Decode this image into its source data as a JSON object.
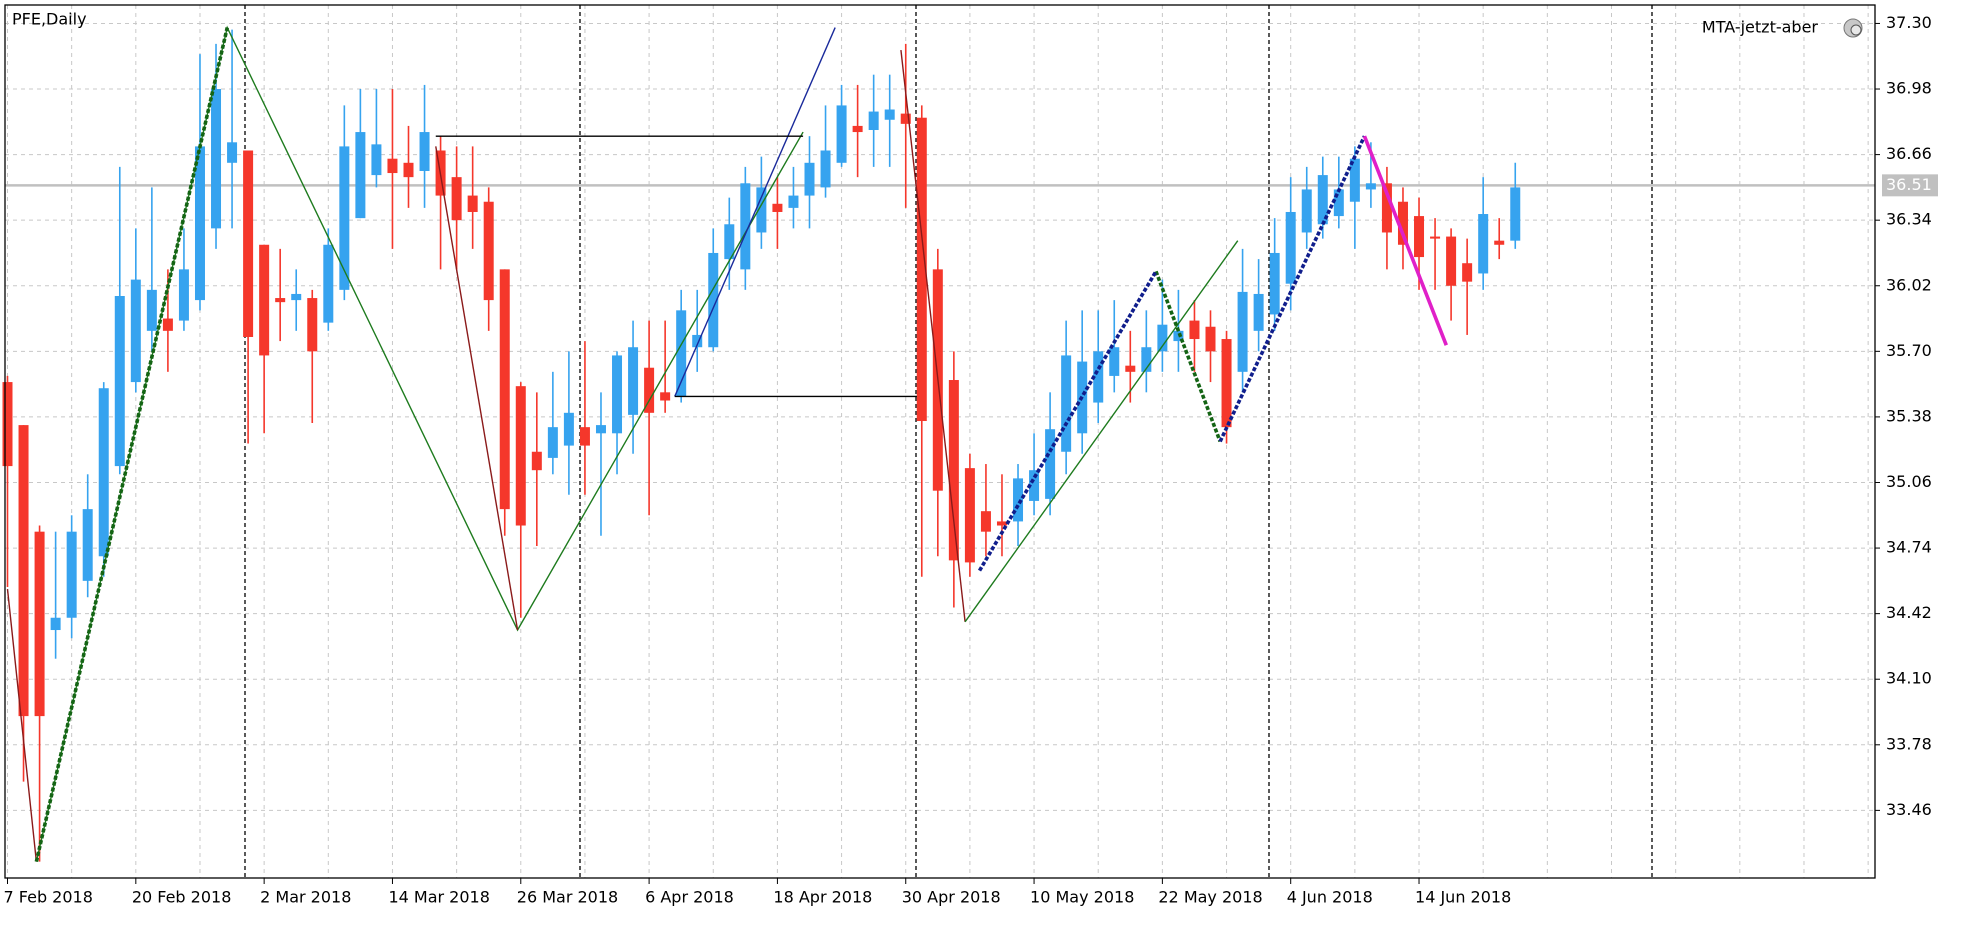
{
  "chart_data": {
    "type": "candlestick",
    "title": "PFE,Daily",
    "indicator": "MTA-jetzt-aber",
    "up_color": "#36a3ef",
    "down_color": "#f5372b",
    "categories": [
      "7 Feb 2018",
      null,
      null,
      null,
      null,
      null,
      null,
      null,
      "20 Feb 2018",
      null,
      null,
      null,
      null,
      null,
      null,
      null,
      "2 Mar 2018",
      null,
      null,
      null,
      null,
      null,
      null,
      null,
      "14 Mar 2018",
      null,
      null,
      null,
      null,
      null,
      null,
      null,
      "26 Mar 2018",
      null,
      null,
      null,
      null,
      null,
      null,
      null,
      "6 Apr 2018",
      null,
      null,
      null,
      null,
      null,
      null,
      null,
      "18 Apr 2018",
      null,
      null,
      null,
      null,
      null,
      null,
      null,
      "30 Apr 2018",
      null,
      null,
      null,
      null,
      null,
      null,
      null,
      "10 May 2018",
      null,
      null,
      null,
      null,
      null,
      null,
      null,
      "22 May 2018",
      null,
      null,
      null,
      null,
      null,
      null,
      null,
      "4 Jun 2018",
      null,
      null,
      null,
      null,
      null,
      null,
      null,
      "14 Jun 2018",
      null,
      null,
      null,
      null,
      null,
      null
    ],
    "open": [
      35.55,
      35.34,
      34.82,
      34.34,
      34.4,
      34.58,
      34.7,
      35.14,
      35.55,
      35.8,
      35.86,
      35.85,
      35.95,
      36.3,
      36.62,
      36.68,
      36.22,
      35.96,
      35.95,
      35.96,
      35.84,
      36.0,
      36.35,
      36.56,
      36.64,
      36.62,
      36.58,
      36.68,
      36.55,
      36.46,
      36.43,
      36.1,
      35.53,
      35.21,
      35.18,
      35.24,
      35.33,
      35.3,
      35.3,
      35.39,
      35.62,
      35.5,
      35.48,
      35.72,
      35.72,
      36.15,
      36.1,
      36.28,
      36.42,
      36.4,
      36.46,
      36.5,
      36.62,
      36.8,
      36.78,
      36.83,
      36.86,
      36.84,
      36.1,
      35.56,
      35.13,
      34.92,
      34.87,
      34.87,
      34.97,
      34.98,
      35.21,
      35.3,
      35.45,
      35.58,
      35.63,
      35.6,
      35.7,
      35.75,
      35.85,
      35.82,
      35.76,
      35.6,
      35.8,
      35.88,
      36.03,
      36.28,
      36.32,
      36.36,
      36.43,
      36.49,
      36.52,
      36.43,
      36.36,
      36.26,
      36.26,
      36.13,
      36.08,
      36.24,
      36.24
    ],
    "high": [
      35.58,
      35.34,
      34.85,
      34.82,
      34.9,
      35.1,
      35.55,
      36.6,
      36.3,
      36.5,
      36.1,
      36.3,
      37.15,
      37.2,
      37.27,
      36.68,
      36.22,
      36.2,
      36.1,
      36.0,
      36.3,
      36.9,
      36.98,
      36.98,
      36.98,
      36.8,
      37.0,
      36.75,
      36.7,
      36.7,
      36.5,
      36.1,
      35.55,
      35.5,
      35.6,
      35.7,
      35.75,
      35.5,
      35.7,
      35.85,
      35.85,
      35.85,
      36.0,
      36.0,
      36.3,
      36.45,
      36.6,
      36.65,
      36.55,
      36.6,
      36.75,
      36.9,
      37.0,
      37.0,
      37.05,
      37.05,
      37.2,
      36.9,
      36.2,
      35.7,
      35.2,
      35.15,
      35.1,
      35.15,
      35.3,
      35.5,
      35.85,
      35.9,
      35.9,
      35.95,
      35.8,
      35.9,
      36.05,
      36.0,
      35.95,
      35.9,
      35.8,
      36.2,
      36.15,
      36.35,
      36.55,
      36.6,
      36.65,
      36.65,
      36.7,
      36.72,
      36.6,
      36.5,
      36.45,
      36.35,
      36.3,
      36.25,
      36.55,
      36.35,
      36.62
    ],
    "low": [
      34.55,
      33.6,
      33.21,
      34.2,
      34.3,
      34.5,
      34.6,
      35.1,
      35.5,
      35.7,
      35.6,
      35.8,
      35.9,
      36.2,
      36.3,
      35.25,
      35.3,
      35.75,
      35.8,
      35.35,
      35.8,
      35.95,
      36.35,
      36.5,
      36.2,
      36.4,
      36.4,
      36.1,
      36.1,
      36.2,
      35.8,
      34.8,
      34.4,
      34.75,
      35.1,
      35.0,
      35.0,
      34.8,
      35.1,
      35.2,
      34.9,
      35.4,
      35.45,
      35.6,
      35.7,
      36.0,
      36.0,
      36.2,
      36.2,
      36.3,
      36.3,
      36.45,
      36.6,
      36.55,
      36.6,
      36.6,
      36.4,
      34.6,
      34.7,
      34.45,
      34.6,
      34.7,
      34.7,
      34.75,
      34.9,
      34.9,
      35.1,
      35.2,
      35.35,
      35.5,
      35.45,
      35.5,
      35.6,
      35.6,
      35.6,
      35.55,
      35.25,
      35.5,
      35.7,
      35.8,
      35.9,
      36.2,
      36.25,
      36.3,
      36.2,
      36.4,
      36.1,
      36.1,
      36.0,
      36.0,
      35.85,
      35.78,
      36.0,
      36.15,
      36.2
    ],
    "close": [
      35.14,
      33.92,
      33.92,
      34.4,
      34.82,
      34.93,
      35.52,
      35.97,
      36.05,
      36.0,
      35.8,
      36.1,
      36.7,
      36.98,
      36.72,
      35.77,
      35.68,
      35.94,
      35.98,
      35.7,
      36.22,
      36.7,
      36.77,
      36.71,
      36.57,
      36.55,
      36.77,
      36.46,
      36.34,
      36.38,
      35.95,
      34.93,
      34.85,
      35.12,
      35.33,
      35.4,
      35.24,
      35.34,
      35.68,
      35.72,
      35.4,
      35.46,
      35.9,
      35.78,
      36.18,
      36.32,
      36.52,
      36.5,
      36.38,
      36.46,
      36.62,
      36.68,
      36.9,
      36.77,
      36.87,
      36.88,
      36.81,
      35.36,
      35.02,
      34.68,
      34.67,
      34.82,
      34.85,
      35.08,
      35.12,
      35.32,
      35.68,
      35.65,
      35.7,
      35.72,
      35.6,
      35.72,
      35.83,
      35.8,
      35.76,
      35.7,
      35.33,
      35.99,
      35.98,
      36.18,
      36.38,
      36.49,
      36.56,
      36.49,
      36.64,
      36.52,
      36.28,
      36.22,
      36.16,
      36.25,
      36.02,
      36.04,
      36.37,
      36.22,
      36.5
    ],
    "ylim": [
      33.13,
      37.39
    ],
    "yticks": [
      33.46,
      33.78,
      {
        "value": 34.1,
        "label": "34.10"
      },
      34.42,
      34.74,
      35.06,
      35.38,
      {
        "value": 35.7,
        "label": "35.70"
      },
      36.02,
      36.34,
      36.66,
      36.98,
      {
        "value": 37.3,
        "label": "37.30"
      }
    ],
    "grid": true,
    "price_line": 36.51,
    "lines": [
      {
        "color": "#8b1a1a",
        "style": "solid",
        "points": [
          [
            0,
            34.54
          ],
          [
            1.8,
            33.21
          ]
        ]
      },
      {
        "color": "#1e7b1e",
        "style": "solid",
        "points": [
          [
            1.8,
            33.21
          ],
          [
            13.7,
            37.28
          ],
          [
            31.8,
            34.34
          ],
          [
            49.6,
            36.77
          ]
        ]
      },
      {
        "color": "#8b1a1a",
        "style": "solid",
        "points": [
          [
            26.7,
            36.7
          ],
          [
            31.8,
            34.34
          ]
        ]
      },
      {
        "color": "#1a2a9b",
        "style": "solid",
        "points": [
          [
            41.6,
            35.48
          ],
          [
            51.6,
            37.28
          ]
        ]
      },
      {
        "color": "#8b1a1a",
        "style": "solid",
        "points": [
          [
            55.7,
            37.17
          ],
          [
            59.7,
            34.38
          ]
        ]
      },
      {
        "color": "#1e7b1e",
        "style": "solid",
        "points": [
          [
            59.7,
            34.38
          ],
          [
            76.7,
            36.24
          ]
        ]
      },
      {
        "color": "#000000",
        "style": "solid",
        "points": [
          [
            26.7,
            36.75
          ],
          [
            49.6,
            36.75
          ]
        ]
      },
      {
        "color": "#000000",
        "style": "solid",
        "points": [
          [
            41.6,
            35.48
          ],
          [
            56.7,
            35.48
          ]
        ]
      },
      {
        "color": "#146414",
        "style": "dotted",
        "points": [
          [
            1.8,
            33.21
          ],
          [
            13.7,
            37.28
          ]
        ]
      },
      {
        "color": "#146414",
        "style": "dotted",
        "points": [
          [
            71.6,
            36.09
          ],
          [
            75.6,
            35.26
          ]
        ]
      },
      {
        "color": "#101e8c",
        "style": "dotted",
        "points": [
          [
            60.6,
            34.63
          ],
          [
            71.6,
            36.09
          ]
        ]
      },
      {
        "color": "#101e8c",
        "style": "dotted",
        "points": [
          [
            75.6,
            35.26
          ],
          [
            84.6,
            36.75
          ]
        ]
      },
      {
        "color": "#e020c8",
        "style": "thick",
        "points": [
          [
            84.6,
            36.75
          ],
          [
            89.7,
            35.73
          ]
        ]
      }
    ]
  }
}
